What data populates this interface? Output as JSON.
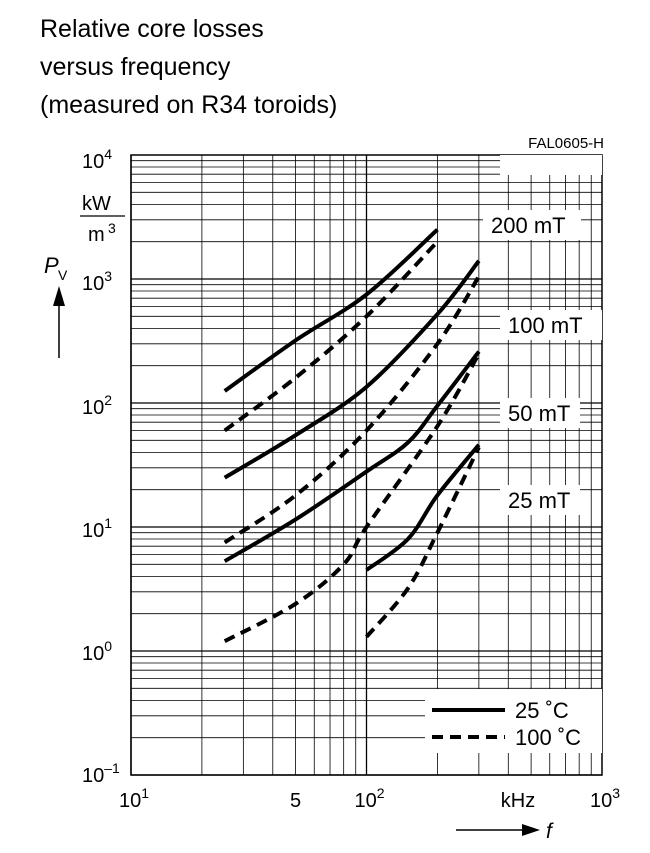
{
  "title_lines": [
    "Relative core losses",
    "versus frequency",
    "(measured on R34 toroids)"
  ],
  "figure_code": "FAL0605-H",
  "chart_data": {
    "type": "line",
    "scale": "log-log",
    "grid": true,
    "xlim": [
      10,
      1000
    ],
    "ylim": [
      0.1,
      10000
    ],
    "x_tick_labels": [
      {
        "value": 10,
        "base": "10",
        "exp": "1"
      },
      {
        "value": 50,
        "label": "5"
      },
      {
        "value": 100,
        "base": "10",
        "exp": "2"
      },
      {
        "value": 1000,
        "base": "10",
        "exp": "3"
      }
    ],
    "y_tick_labels": [
      {
        "value": 0.1,
        "base": "10",
        "exp": "–1"
      },
      {
        "value": 1,
        "base": "10",
        "exp": "0"
      },
      {
        "value": 10,
        "base": "10",
        "exp": "1"
      },
      {
        "value": 100,
        "base": "10",
        "exp": "2"
      },
      {
        "value": 1000,
        "base": "10",
        "exp": "3"
      },
      {
        "value": 10000,
        "base": "10",
        "exp": "4"
      }
    ],
    "xlabel": "f",
    "xunit": "kHz",
    "ylabel_main": "P",
    "ylabel_sub": "V",
    "yunit_num": "kW",
    "yunit_den": "m",
    "yunit_den_exp": "3",
    "curve_labels": [
      "200 mT",
      "100 mT",
      "50 mT",
      "25 mT"
    ],
    "legend": [
      {
        "label": "25 ˚C",
        "style": "solid"
      },
      {
        "label": "100 ˚C",
        "style": "dashed"
      }
    ],
    "series": [
      {
        "flux": "200 mT",
        "temp": "25 ˚C",
        "style": "solid",
        "points": [
          [
            25,
            125
          ],
          [
            50,
            320
          ],
          [
            100,
            750
          ],
          [
            200,
            2500
          ]
        ]
      },
      {
        "flux": "200 mT",
        "temp": "100 ˚C",
        "style": "dashed",
        "points": [
          [
            25,
            60
          ],
          [
            50,
            160
          ],
          [
            100,
            500
          ],
          [
            200,
            2000
          ]
        ]
      },
      {
        "flux": "100 mT",
        "temp": "25 ˚C",
        "style": "solid",
        "points": [
          [
            25,
            25
          ],
          [
            50,
            55
          ],
          [
            100,
            135
          ],
          [
            200,
            520
          ],
          [
            300,
            1400
          ]
        ]
      },
      {
        "flux": "100 mT",
        "temp": "100 ˚C",
        "style": "dashed",
        "points": [
          [
            25,
            7.5
          ],
          [
            50,
            18
          ],
          [
            100,
            60
          ],
          [
            200,
            300
          ],
          [
            300,
            1050
          ]
        ]
      },
      {
        "flux": "50 mT",
        "temp": "25 ˚C",
        "style": "solid",
        "points": [
          [
            25,
            5.3
          ],
          [
            50,
            11.5
          ],
          [
            100,
            28
          ],
          [
            150,
            48
          ],
          [
            200,
            95
          ],
          [
            300,
            260
          ]
        ]
      },
      {
        "flux": "50 mT",
        "temp": "100 ˚C",
        "style": "dashed",
        "points": [
          [
            25,
            1.2
          ],
          [
            50,
            2.4
          ],
          [
            80,
            5
          ],
          [
            100,
            10
          ],
          [
            200,
            65
          ],
          [
            300,
            250
          ]
        ]
      },
      {
        "flux": "25 mT",
        "temp": "25 ˚C",
        "style": "solid",
        "points": [
          [
            100,
            4.5
          ],
          [
            150,
            8
          ],
          [
            200,
            18
          ],
          [
            300,
            46
          ]
        ]
      },
      {
        "flux": "25 mT",
        "temp": "100 ˚C",
        "style": "dashed",
        "points": [
          [
            100,
            1.3
          ],
          [
            150,
            3.2
          ],
          [
            200,
            9
          ],
          [
            300,
            44
          ]
        ]
      }
    ]
  }
}
